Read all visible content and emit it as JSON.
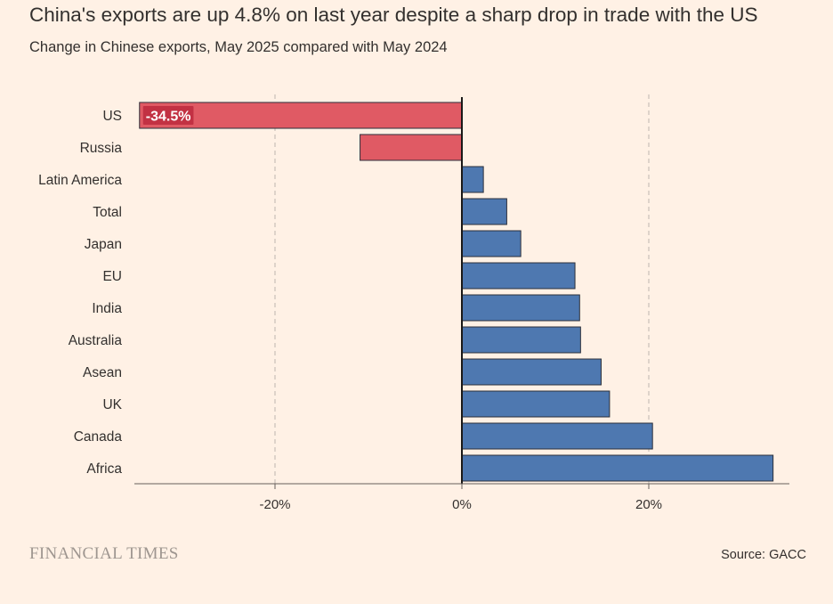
{
  "title": "China's exports are up 4.8% on last year despite a sharp drop in trade with the US",
  "subtitle": "Change in Chinese exports, May 2025 compared with May 2024",
  "footer": {
    "logo": "FINANCIAL TIMES",
    "source": "Source: GACC"
  },
  "chart_data": {
    "type": "bar",
    "orientation": "horizontal",
    "categories": [
      "US",
      "Russia",
      "Latin America",
      "Total",
      "Japan",
      "EU",
      "India",
      "Australia",
      "Asean",
      "UK",
      "Canada",
      "Africa"
    ],
    "values": [
      -34.5,
      -10.9,
      2.3,
      4.8,
      6.3,
      12.1,
      12.6,
      12.7,
      14.9,
      15.8,
      20.4,
      33.3
    ],
    "unit": "%",
    "xlim": [
      -35,
      35
    ],
    "ticks": [
      -20,
      0,
      20
    ],
    "tick_labels": [
      "-20%",
      "0%",
      "20%"
    ],
    "grid": "dashed vertical at ticks",
    "data_labels": [
      {
        "category": "US",
        "text": "-34.5%"
      }
    ],
    "colors": {
      "negative": "#E05A64",
      "positive": "#4E78B0",
      "bar_stroke": "#2B2F3A",
      "label_bg": "#C23143",
      "label_text": "#FFFFFF",
      "grid": "#BDB5AE",
      "axis": "#66605C",
      "zero_line": "#1A1817"
    }
  }
}
